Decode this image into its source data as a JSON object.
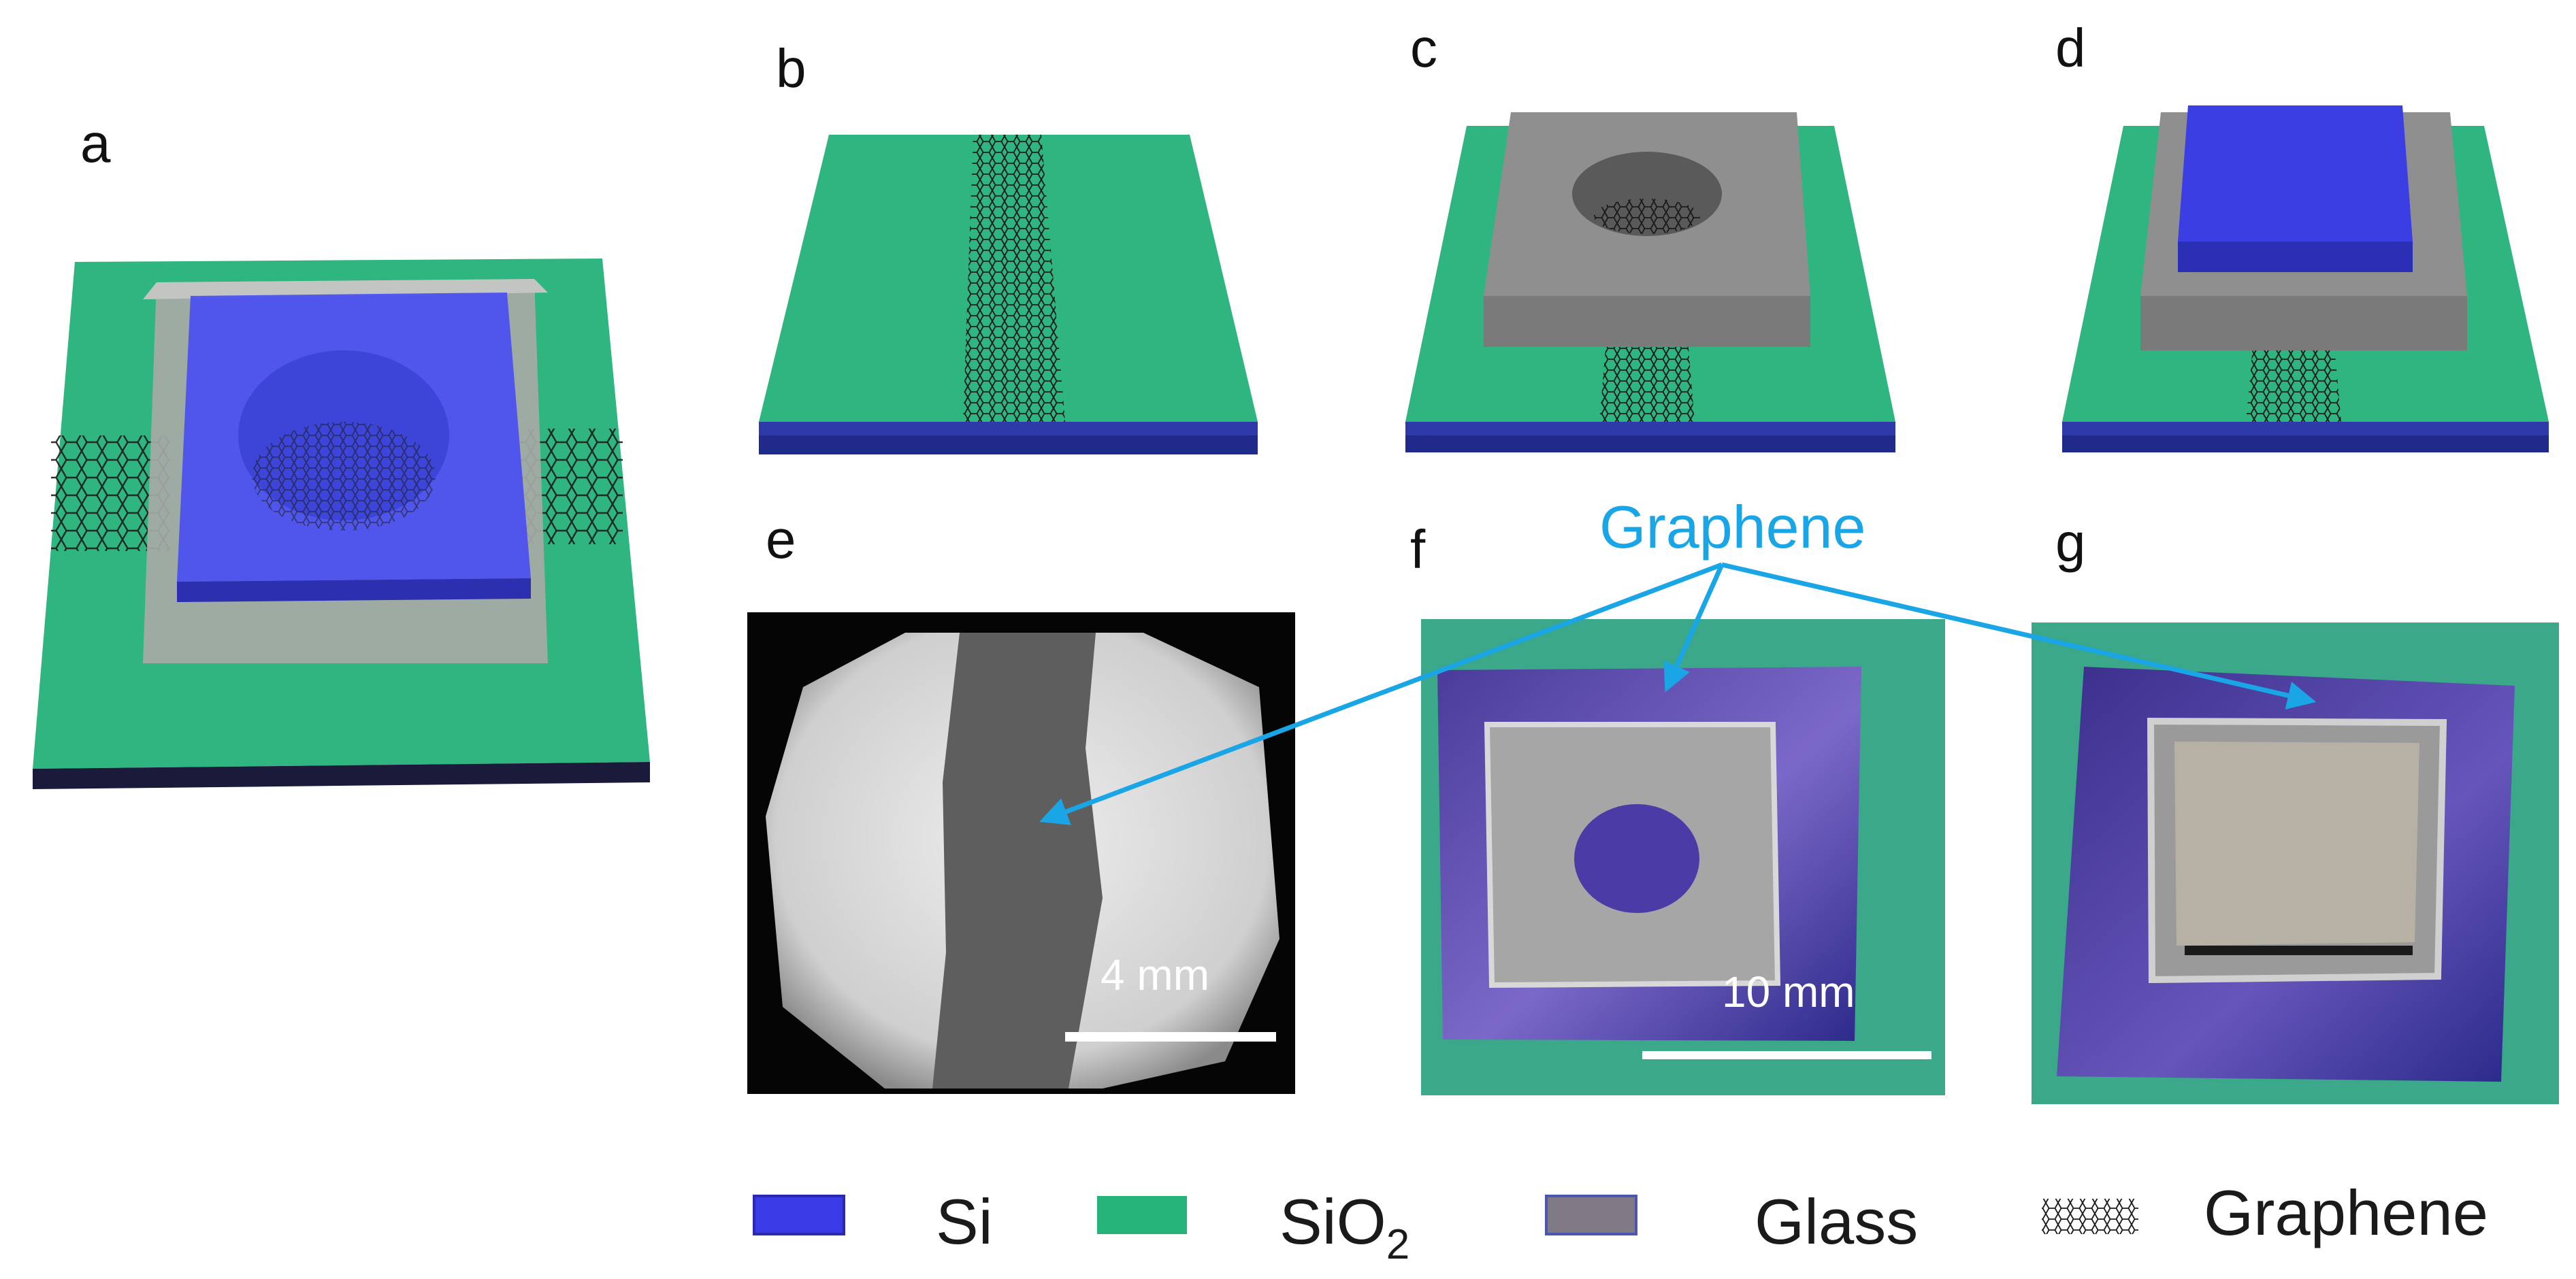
{
  "panels": {
    "a": "a",
    "b": "b",
    "c": "c",
    "d": "d",
    "e": "e",
    "f": "f",
    "g": "g"
  },
  "annotation": "Graphene",
  "scale_bars": {
    "e": "4 mm",
    "f": "10 mm"
  },
  "legend": {
    "si": "Si",
    "sio2_base": "SiO",
    "sio2_sub": "2",
    "glass": "Glass",
    "graphene": "Graphene"
  },
  "colors": {
    "si": "#3a3ae6",
    "si_dark": "#1f2a8a",
    "sio2": "#27b47a",
    "glass": "#7f7a86",
    "arrow": "#1aa6e6"
  }
}
